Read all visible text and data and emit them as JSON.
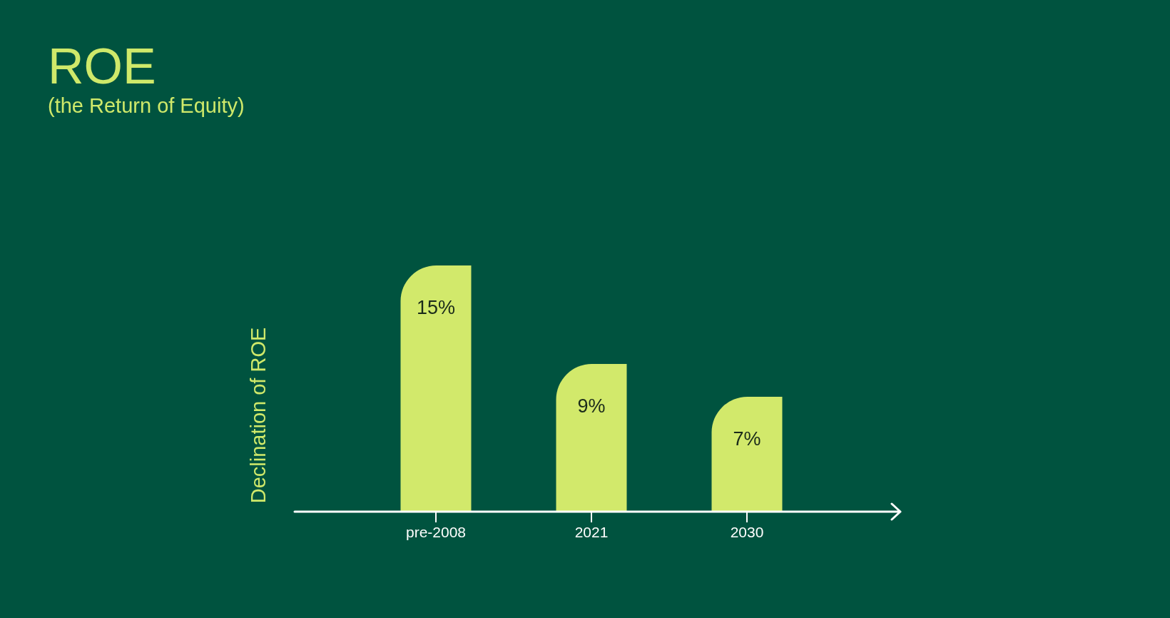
{
  "chart_data": {
    "type": "bar",
    "title": "ROE",
    "subtitle": "(the Return of Equity)",
    "ylabel": "Declination of ROE",
    "categories": [
      "pre-2008",
      "2021",
      "2030"
    ],
    "values": [
      15,
      9,
      7
    ],
    "color": "#d2e96b",
    "value_labels": [
      "15%",
      "9%",
      "7%"
    ]
  }
}
